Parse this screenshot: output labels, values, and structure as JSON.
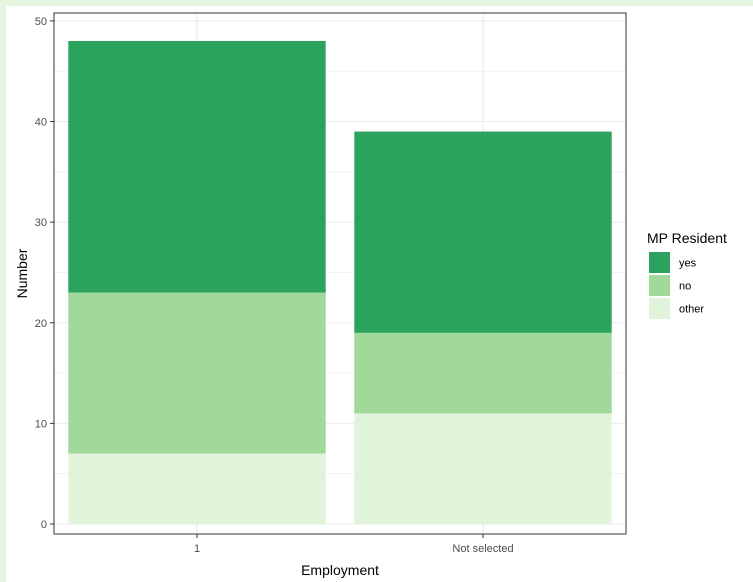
{
  "chart_data": {
    "type": "bar",
    "stacked": true,
    "categories": [
      "1",
      "Not selected"
    ],
    "series": [
      {
        "name": "other",
        "values": [
          7,
          11
        ],
        "color": "#e0f3db"
      },
      {
        "name": "no",
        "values": [
          16,
          8
        ],
        "color": "#a1d99b"
      },
      {
        "name": "yes",
        "values": [
          25,
          20
        ],
        "color": "#2ca25f"
      }
    ],
    "xlabel": "Employment",
    "ylabel": "Number",
    "ylim": [
      0,
      50
    ],
    "yticks": [
      0,
      10,
      20,
      30,
      40,
      50
    ],
    "grid": true,
    "legend": {
      "title": "MP Resident",
      "placement": "right",
      "order": [
        "yes",
        "no",
        "other"
      ]
    }
  },
  "colors": {
    "page_background": "#e5f5e0",
    "panel_border": "#333333",
    "grid_major": "#ebebeb"
  }
}
